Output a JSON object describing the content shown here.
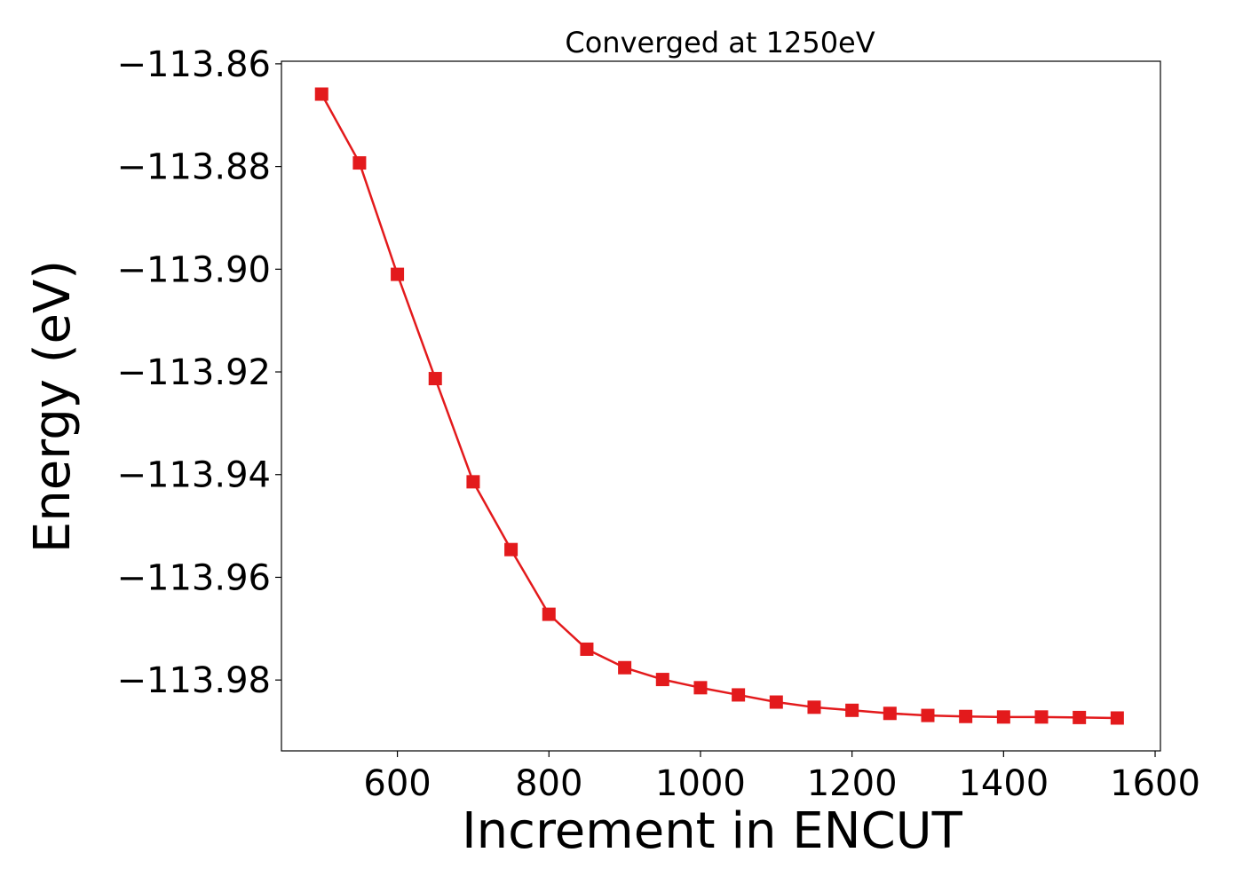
{
  "chart_data": {
    "type": "line",
    "title": "Converged at 1250eV",
    "xlabel": "Increment in ENCUT",
    "ylabel": "Energy (eV)",
    "xlim": [
      447,
      1607
    ],
    "ylim": [
      -113.9938,
      -113.8595
    ],
    "x_ticks": [
      600,
      800,
      1000,
      1200,
      1400,
      1600
    ],
    "y_ticks": [
      -113.86,
      -113.88,
      -113.9,
      -113.92,
      -113.94,
      -113.96,
      -113.98
    ],
    "y_tick_labels": [
      "−113.86",
      "−113.88",
      "−113.90",
      "−113.92",
      "−113.94",
      "−113.96",
      "−113.98"
    ],
    "grid": false,
    "marker": "square",
    "series_color": "#e31a1c",
    "series": [
      {
        "x": [
          500,
          550,
          600,
          650,
          700,
          750,
          800,
          850,
          900,
          950,
          1000,
          1050,
          1100,
          1150,
          1200,
          1250,
          1300,
          1350,
          1400,
          1450,
          1500,
          1550
        ],
        "values": [
          -113.8659,
          -113.8793,
          -113.901,
          -113.9213,
          -113.9414,
          -113.9546,
          -113.9672,
          -113.974,
          -113.9776,
          -113.9799,
          -113.9815,
          -113.9829,
          -113.9843,
          -113.9853,
          -113.9859,
          -113.9865,
          -113.9869,
          -113.9871,
          -113.9872,
          -113.9872,
          -113.9873,
          -113.9874
        ]
      }
    ]
  }
}
